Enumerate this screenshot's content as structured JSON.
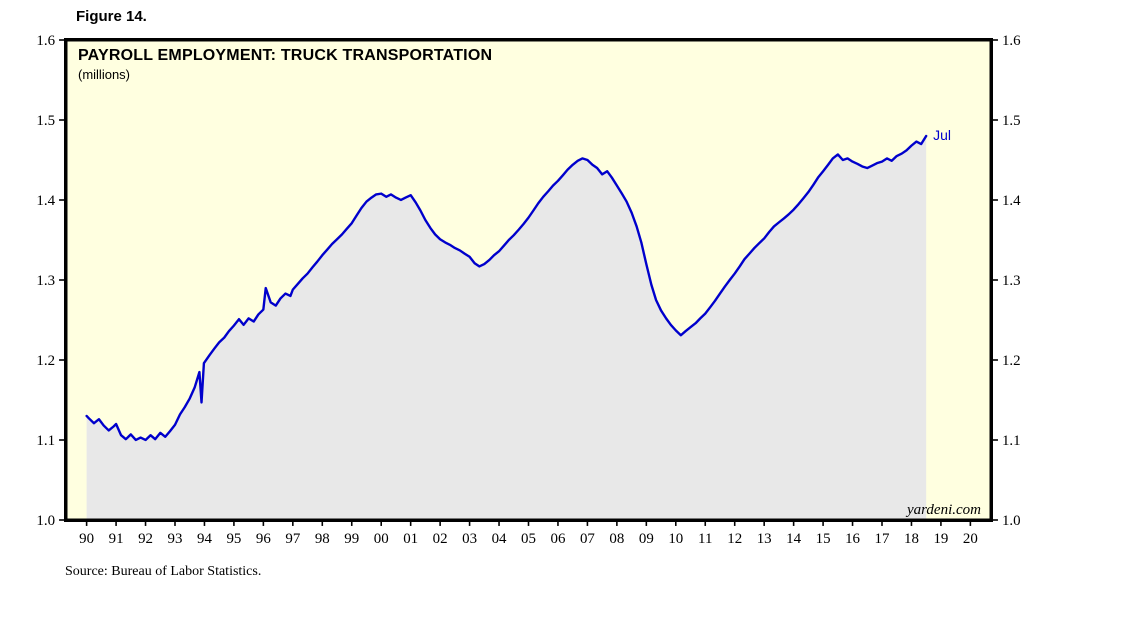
{
  "figure_label": "Figure 14.",
  "source": "Source: Bureau of Labor Statistics.",
  "watermark": "yardeni.com",
  "chart_data": {
    "type": "line",
    "title": "PAYROLL EMPLOYMENT: TRUCK TRANSPORTATION",
    "subtitle": "(millions)",
    "series_name": "Truck transportation payroll employment",
    "end_label": "Jul",
    "legend": "none",
    "grid": "off",
    "ylim": [
      1.0,
      1.6
    ],
    "xlim": [
      1989.3,
      2020.7
    ],
    "y_ticks": [
      1.0,
      1.1,
      1.2,
      1.3,
      1.4,
      1.5,
      1.6
    ],
    "y_tick_labels": [
      "1.0",
      "1.1",
      "1.2",
      "1.3",
      "1.4",
      "1.5",
      "1.6"
    ],
    "x_ticks": [
      1990,
      1991,
      1992,
      1993,
      1994,
      1995,
      1996,
      1997,
      1998,
      1999,
      2000,
      2001,
      2002,
      2003,
      2004,
      2005,
      2006,
      2007,
      2008,
      2009,
      2010,
      2011,
      2012,
      2013,
      2014,
      2015,
      2016,
      2017,
      2018,
      2019,
      2020
    ],
    "x_tick_labels": [
      "90",
      "91",
      "92",
      "93",
      "94",
      "95",
      "96",
      "97",
      "98",
      "99",
      "00",
      "01",
      "02",
      "03",
      "04",
      "05",
      "06",
      "07",
      "08",
      "09",
      "10",
      "11",
      "12",
      "13",
      "14",
      "15",
      "16",
      "17",
      "18",
      "19",
      "20"
    ],
    "colors": {
      "line": "#0000cc",
      "area_fill": "#e8e8e8",
      "plot_bg": "#ffffe0",
      "frame": "#000000",
      "end_label": "#0000cc"
    },
    "points": [
      [
        1990.0,
        1.13
      ],
      [
        1990.08,
        1.127
      ],
      [
        1990.25,
        1.121
      ],
      [
        1990.42,
        1.126
      ],
      [
        1990.58,
        1.118
      ],
      [
        1990.75,
        1.112
      ],
      [
        1990.92,
        1.117
      ],
      [
        1991.0,
        1.12
      ],
      [
        1991.17,
        1.106
      ],
      [
        1991.33,
        1.101
      ],
      [
        1991.5,
        1.107
      ],
      [
        1991.67,
        1.1
      ],
      [
        1991.83,
        1.103
      ],
      [
        1992.0,
        1.1
      ],
      [
        1992.17,
        1.106
      ],
      [
        1992.33,
        1.101
      ],
      [
        1992.5,
        1.109
      ],
      [
        1992.67,
        1.104
      ],
      [
        1992.83,
        1.111
      ],
      [
        1993.0,
        1.119
      ],
      [
        1993.17,
        1.132
      ],
      [
        1993.33,
        1.141
      ],
      [
        1993.5,
        1.152
      ],
      [
        1993.67,
        1.166
      ],
      [
        1993.83,
        1.185
      ],
      [
        1993.9,
        1.147
      ],
      [
        1993.98,
        1.196
      ],
      [
        1994.17,
        1.206
      ],
      [
        1994.33,
        1.214
      ],
      [
        1994.5,
        1.222
      ],
      [
        1994.67,
        1.228
      ],
      [
        1994.83,
        1.236
      ],
      [
        1995.0,
        1.243
      ],
      [
        1995.17,
        1.251
      ],
      [
        1995.33,
        1.244
      ],
      [
        1995.5,
        1.252
      ],
      [
        1995.67,
        1.248
      ],
      [
        1995.83,
        1.257
      ],
      [
        1996.0,
        1.263
      ],
      [
        1996.08,
        1.29
      ],
      [
        1996.25,
        1.272
      ],
      [
        1996.42,
        1.268
      ],
      [
        1996.58,
        1.277
      ],
      [
        1996.75,
        1.283
      ],
      [
        1996.92,
        1.28
      ],
      [
        1997.0,
        1.288
      ],
      [
        1997.17,
        1.295
      ],
      [
        1997.33,
        1.302
      ],
      [
        1997.5,
        1.308
      ],
      [
        1997.67,
        1.316
      ],
      [
        1997.83,
        1.323
      ],
      [
        1998.0,
        1.331
      ],
      [
        1998.17,
        1.338
      ],
      [
        1998.33,
        1.345
      ],
      [
        1998.5,
        1.351
      ],
      [
        1998.67,
        1.357
      ],
      [
        1998.83,
        1.364
      ],
      [
        1999.0,
        1.371
      ],
      [
        1999.17,
        1.381
      ],
      [
        1999.33,
        1.39
      ],
      [
        1999.5,
        1.398
      ],
      [
        1999.67,
        1.403
      ],
      [
        1999.83,
        1.407
      ],
      [
        2000.0,
        1.408
      ],
      [
        2000.17,
        1.404
      ],
      [
        2000.33,
        1.407
      ],
      [
        2000.5,
        1.403
      ],
      [
        2000.67,
        1.4
      ],
      [
        2000.83,
        1.403
      ],
      [
        2001.0,
        1.406
      ],
      [
        2001.17,
        1.397
      ],
      [
        2001.33,
        1.387
      ],
      [
        2001.5,
        1.375
      ],
      [
        2001.67,
        1.365
      ],
      [
        2001.83,
        1.357
      ],
      [
        2002.0,
        1.351
      ],
      [
        2002.17,
        1.347
      ],
      [
        2002.33,
        1.344
      ],
      [
        2002.5,
        1.34
      ],
      [
        2002.67,
        1.337
      ],
      [
        2002.83,
        1.333
      ],
      [
        2003.0,
        1.329
      ],
      [
        2003.17,
        1.321
      ],
      [
        2003.33,
        1.317
      ],
      [
        2003.5,
        1.32
      ],
      [
        2003.67,
        1.325
      ],
      [
        2003.83,
        1.331
      ],
      [
        2004.0,
        1.336
      ],
      [
        2004.17,
        1.343
      ],
      [
        2004.33,
        1.35
      ],
      [
        2004.5,
        1.356
      ],
      [
        2004.67,
        1.363
      ],
      [
        2004.83,
        1.37
      ],
      [
        2005.0,
        1.378
      ],
      [
        2005.17,
        1.387
      ],
      [
        2005.33,
        1.396
      ],
      [
        2005.5,
        1.404
      ],
      [
        2005.67,
        1.411
      ],
      [
        2005.83,
        1.418
      ],
      [
        2006.0,
        1.424
      ],
      [
        2006.17,
        1.431
      ],
      [
        2006.33,
        1.438
      ],
      [
        2006.5,
        1.444
      ],
      [
        2006.67,
        1.449
      ],
      [
        2006.83,
        1.452
      ],
      [
        2007.0,
        1.45
      ],
      [
        2007.17,
        1.444
      ],
      [
        2007.33,
        1.44
      ],
      [
        2007.5,
        1.432
      ],
      [
        2007.67,
        1.436
      ],
      [
        2007.83,
        1.428
      ],
      [
        2008.0,
        1.418
      ],
      [
        2008.17,
        1.408
      ],
      [
        2008.33,
        1.398
      ],
      [
        2008.5,
        1.384
      ],
      [
        2008.67,
        1.367
      ],
      [
        2008.83,
        1.347
      ],
      [
        2009.0,
        1.32
      ],
      [
        2009.17,
        1.294
      ],
      [
        2009.33,
        1.275
      ],
      [
        2009.5,
        1.262
      ],
      [
        2009.67,
        1.252
      ],
      [
        2009.83,
        1.244
      ],
      [
        2010.0,
        1.237
      ],
      [
        2010.17,
        1.231
      ],
      [
        2010.33,
        1.236
      ],
      [
        2010.5,
        1.241
      ],
      [
        2010.67,
        1.246
      ],
      [
        2010.83,
        1.252
      ],
      [
        2011.0,
        1.258
      ],
      [
        2011.17,
        1.266
      ],
      [
        2011.33,
        1.274
      ],
      [
        2011.5,
        1.283
      ],
      [
        2011.67,
        1.292
      ],
      [
        2011.83,
        1.3
      ],
      [
        2012.0,
        1.308
      ],
      [
        2012.17,
        1.317
      ],
      [
        2012.33,
        1.326
      ],
      [
        2012.5,
        1.333
      ],
      [
        2012.67,
        1.34
      ],
      [
        2012.83,
        1.346
      ],
      [
        2013.0,
        1.352
      ],
      [
        2013.17,
        1.36
      ],
      [
        2013.33,
        1.367
      ],
      [
        2013.5,
        1.372
      ],
      [
        2013.67,
        1.377
      ],
      [
        2013.83,
        1.382
      ],
      [
        2014.0,
        1.388
      ],
      [
        2014.17,
        1.395
      ],
      [
        2014.33,
        1.402
      ],
      [
        2014.5,
        1.41
      ],
      [
        2014.67,
        1.419
      ],
      [
        2014.83,
        1.428
      ],
      [
        2015.0,
        1.436
      ],
      [
        2015.17,
        1.444
      ],
      [
        2015.33,
        1.452
      ],
      [
        2015.5,
        1.457
      ],
      [
        2015.67,
        1.45
      ],
      [
        2015.83,
        1.452
      ],
      [
        2016.0,
        1.448
      ],
      [
        2016.17,
        1.445
      ],
      [
        2016.33,
        1.442
      ],
      [
        2016.5,
        1.44
      ],
      [
        2016.67,
        1.443
      ],
      [
        2016.83,
        1.446
      ],
      [
        2017.0,
        1.448
      ],
      [
        2017.17,
        1.452
      ],
      [
        2017.33,
        1.449
      ],
      [
        2017.5,
        1.455
      ],
      [
        2017.67,
        1.458
      ],
      [
        2017.83,
        1.462
      ],
      [
        2018.0,
        1.468
      ],
      [
        2018.17,
        1.473
      ],
      [
        2018.33,
        1.47
      ],
      [
        2018.5,
        1.48
      ]
    ]
  }
}
